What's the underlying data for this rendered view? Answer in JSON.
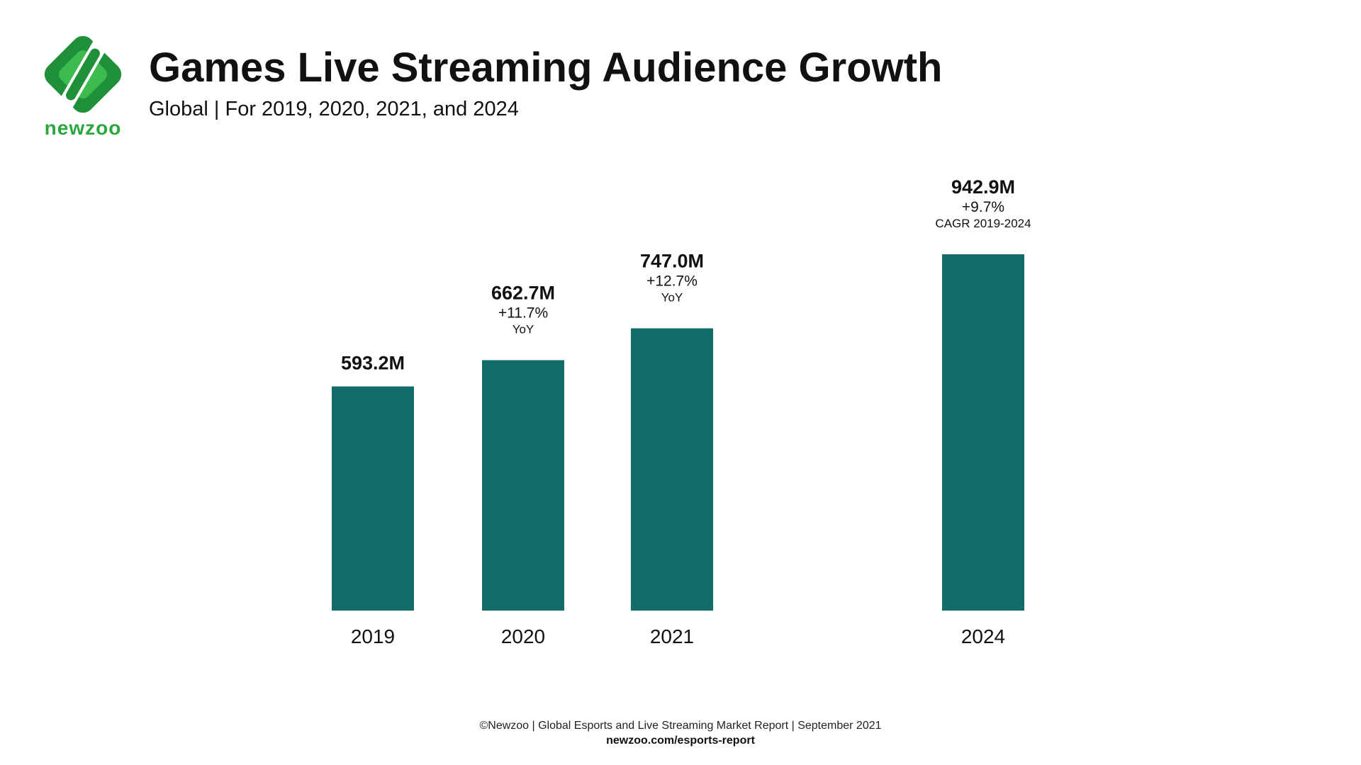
{
  "header": {
    "title": "Games Live Streaming Audience Growth",
    "subtitle": "Global | For 2019, 2020, 2021, and 2024"
  },
  "logo": {
    "text": "newzoo",
    "icon": "newzoo-logo-icon"
  },
  "colors": {
    "bar": "#126c6a",
    "logo_dark": "#1f8f3a",
    "logo_light": "#3dbb4d",
    "text": "#111111"
  },
  "chart_data": {
    "type": "bar",
    "categories": [
      "2019",
      "2020",
      "2021",
      "2024"
    ],
    "values": [
      593.2,
      662.7,
      747.0,
      942.9
    ],
    "value_labels": [
      "593.2M",
      "662.7M",
      "747.0M",
      "942.9M"
    ],
    "growth_labels": [
      "",
      "+11.7%",
      "+12.7%",
      "+9.7%"
    ],
    "growth_notes": [
      "",
      "YoY",
      "YoY",
      "CAGR 2019-2024"
    ],
    "title": "Games Live Streaming Audience Growth",
    "xlabel": "",
    "ylabel": "",
    "grid": false
  },
  "footer": {
    "source": "©Newzoo | Global Esports and Live Streaming Market Report | September 2021",
    "link": "newzoo.com/esports-report"
  }
}
